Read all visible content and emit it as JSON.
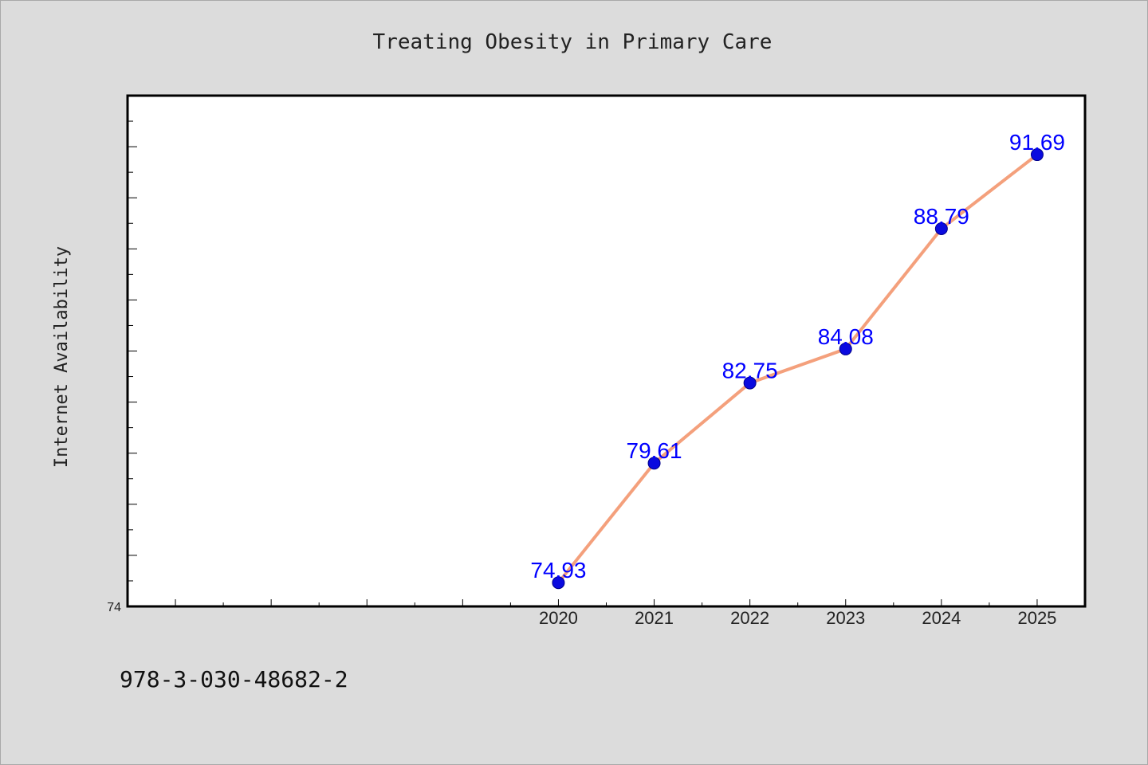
{
  "chart_data": {
    "type": "line",
    "title": "Treating Obesity in Primary Care",
    "xlabel": "",
    "ylabel": "Internet Availability",
    "categories": [
      "2020",
      "2021",
      "2022",
      "2023",
      "2024",
      "2025"
    ],
    "series": [
      {
        "name": "",
        "values": [
          74.93,
          79.61,
          82.75,
          84.08,
          88.79,
          91.69
        ],
        "data_labels": [
          "74.93",
          "79.61",
          "82.75",
          "84.08",
          "88.79",
          "91.69"
        ]
      }
    ],
    "x_axis": {
      "tick_labels": [
        "2020",
        "2021",
        "2022",
        "2023",
        "2024",
        "2025"
      ],
      "range": [
        2015.5,
        2025.5
      ]
    },
    "y_axis": {
      "tick_labels": [
        "74"
      ],
      "range": [
        74,
        94
      ]
    },
    "grid": false,
    "legend": "none",
    "colors": {
      "line": "#f4a07c",
      "marker": "#0a0adf",
      "marker_edge": "#00008b",
      "data_label": "#0000ff",
      "plot_background": "#ffffff",
      "figure_background": "#dcdcdc"
    }
  },
  "footnote": "978-3-030-48682-2"
}
